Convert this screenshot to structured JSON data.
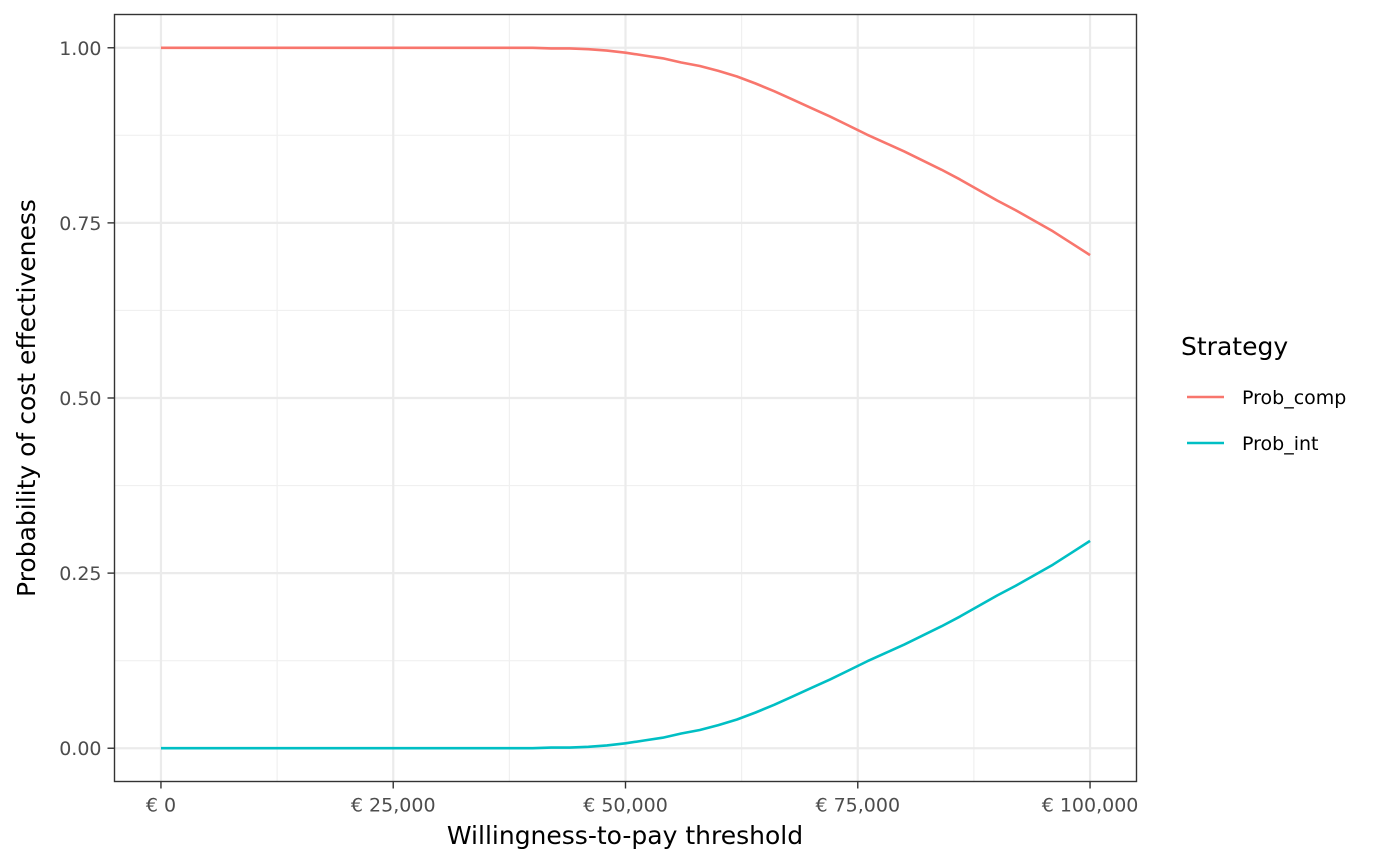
{
  "chart_data": {
    "type": "line",
    "xlabel": "Willingness-to-pay threshold",
    "ylabel": "Probability of cost effectiveness",
    "xlim": [
      -5000,
      105000
    ],
    "ylim": [
      -0.0475,
      1.0475
    ],
    "x_ticks": [
      0,
      25000,
      50000,
      75000,
      100000
    ],
    "x_tick_labels": [
      "€ 0",
      "€ 25,000",
      "€ 50,000",
      "€ 75,000",
      "€ 100,000"
    ],
    "y_ticks": [
      0,
      0.25,
      0.5,
      0.75,
      1.0
    ],
    "y_tick_labels": [
      "0.00",
      "0.25",
      "0.50",
      "0.75",
      "1.00"
    ],
    "grid": true,
    "legend": {
      "title": "Strategy",
      "position": "right"
    },
    "x": [
      0,
      10000,
      20000,
      30000,
      40000,
      42000,
      44000,
      46000,
      48000,
      50000,
      52000,
      54000,
      56000,
      58000,
      60000,
      62000,
      64000,
      66000,
      68000,
      70000,
      72000,
      74000,
      76000,
      78000,
      80000,
      82000,
      84000,
      86000,
      88000,
      90000,
      92000,
      94000,
      96000,
      98000,
      100000
    ],
    "series": [
      {
        "name": "Prob_comp",
        "color": "#F8766D",
        "values": [
          1.0,
          1.0,
          1.0,
          1.0,
          1.0,
          0.999,
          0.999,
          0.998,
          0.996,
          0.993,
          0.989,
          0.985,
          0.979,
          0.974,
          0.967,
          0.959,
          0.949,
          0.938,
          0.926,
          0.914,
          0.902,
          0.889,
          0.876,
          0.864,
          0.852,
          0.839,
          0.826,
          0.812,
          0.797,
          0.782,
          0.768,
          0.753,
          0.738,
          0.721,
          0.704
        ]
      },
      {
        "name": "Prob_int",
        "color": "#00BFC4",
        "values": [
          0.0,
          0.0,
          0.0,
          0.0,
          0.0,
          0.001,
          0.001,
          0.002,
          0.004,
          0.007,
          0.011,
          0.015,
          0.021,
          0.026,
          0.033,
          0.041,
          0.051,
          0.062,
          0.074,
          0.086,
          0.098,
          0.111,
          0.124,
          0.136,
          0.148,
          0.161,
          0.174,
          0.188,
          0.203,
          0.218,
          0.232,
          0.247,
          0.262,
          0.279,
          0.296
        ]
      }
    ]
  }
}
